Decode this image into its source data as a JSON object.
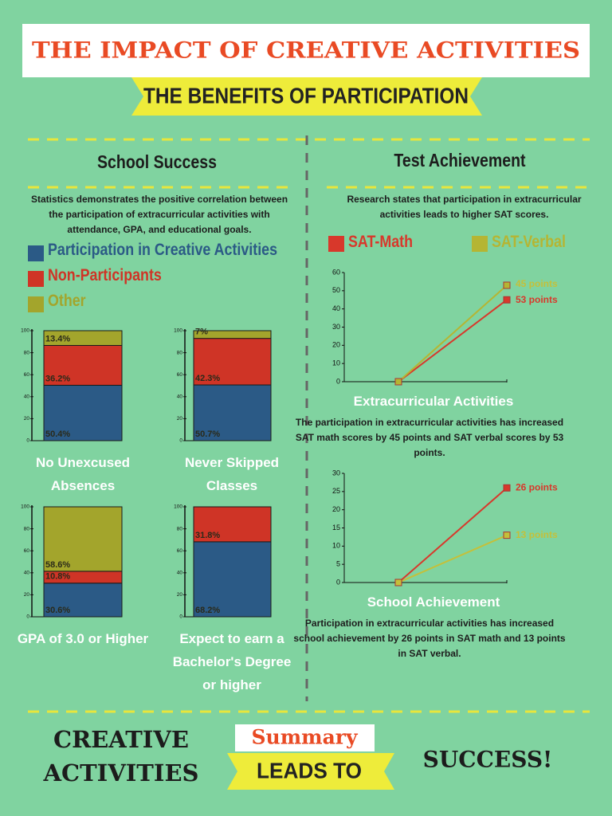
{
  "header": {
    "title": "THE IMPACT OF CREATIVE ACTIVITIES",
    "subtitle": "THE BENEFITS OF PARTICIPATION"
  },
  "school_success": {
    "heading": "School Success",
    "description": "Statistics demonstrates the positive correlation between the participation of extracurricular activities with attendance, GPA, and educational goals."
  },
  "test_achievement": {
    "heading": "Test Achievement",
    "description": "Research states that participation in extracurricular activities leads to higher SAT scores."
  },
  "chart_data": [
    {
      "type": "stacked_bar",
      "categories": [
        "No Unexcused Absences",
        "Never Skipped Classes",
        "GPA of 3.0 or Higher",
        "Expect to earn a Bachelor's Degree or higher"
      ],
      "series": [
        {
          "name": "Participation in Creative Activities",
          "color": "#2b5a86",
          "values": [
            50.4,
            50.7,
            30.6,
            68.2
          ],
          "value_labels": [
            "50.4%",
            "50.7%",
            "30.6%",
            "68.2%"
          ]
        },
        {
          "name": "Non-Participants",
          "color": "#cf3426",
          "values": [
            36.2,
            42.3,
            10.8,
            31.8
          ],
          "value_labels": [
            "36.2%",
            "42.3%",
            "10.8%",
            "31.8%"
          ]
        },
        {
          "name": "Other",
          "color": "#a3a52c",
          "values": [
            13.4,
            7,
            58.6,
            null
          ],
          "value_labels": [
            "13.4%",
            "7%",
            "58.6%",
            null
          ]
        }
      ],
      "ylim": [
        0,
        100
      ],
      "yticks": [
        0,
        20,
        40,
        60,
        80,
        100
      ]
    },
    {
      "type": "line",
      "x_label": "Extracurricular Activities",
      "caption": "The participation in extracurricular activities has increased SAT math scores by 45 points  and SAT verbal scores by 53 points.",
      "categories": [
        null,
        null
      ],
      "series": [
        {
          "name": "SAT-Math",
          "color": "#d8382b",
          "values": [
            0,
            45
          ]
        },
        {
          "name": "SAT-Verbal",
          "color": "#b5b533",
          "values": [
            0,
            53
          ]
        }
      ],
      "annotations": [
        {
          "text": "45 points",
          "color": "#c4c03a"
        },
        {
          "text": "53 points",
          "color": "#d8382b"
        }
      ],
      "ylim": [
        0,
        60
      ],
      "yticks": [
        0,
        10,
        20,
        30,
        40,
        50,
        60
      ]
    },
    {
      "type": "line",
      "x_label": "School Achievement",
      "caption": "Participation in extracurricular activities has increased school achievement by 26 points in SAT math and 13 points in SAT verbal.",
      "categories": [
        null,
        null
      ],
      "series": [
        {
          "color": "#d8382b",
          "values": [
            0,
            26
          ],
          "value_labels": [
            null,
            "26 points"
          ]
        },
        {
          "color": "#c4c03a",
          "values": [
            0,
            13
          ],
          "value_labels": [
            null,
            "13 points"
          ]
        }
      ],
      "ylim": [
        0,
        30
      ],
      "yticks": [
        0,
        5,
        10,
        15,
        20,
        25,
        30
      ]
    }
  ],
  "footer": {
    "left": "CREATIVE ACTIVITIES",
    "summary": "Summary",
    "middle": "LEADS TO",
    "right": "SUCCESS!"
  }
}
